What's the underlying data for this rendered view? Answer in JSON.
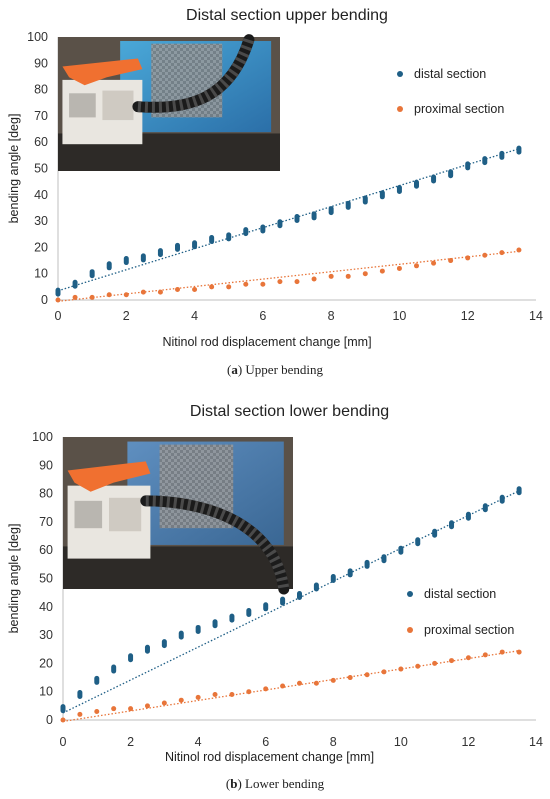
{
  "colors": {
    "distal": "#1f5f86",
    "proximal": "#e8753a",
    "axis": "#bfbfbf",
    "text": "#333333"
  },
  "charts": [
    {
      "caption_letter": "a",
      "caption_rest": " Upper bending",
      "photo": "upper-bending-photo",
      "chart_data": {
        "type": "scatter",
        "title": "Distal section upper bending",
        "xlabel": "Nitinol rod displacement change [mm]",
        "ylabel": "bending angle [deg]",
        "xlim": [
          0,
          14
        ],
        "ylim": [
          0,
          100
        ],
        "xticks": [
          "0",
          "2",
          "4",
          "6",
          "8",
          "10",
          "12",
          "14"
        ],
        "yticks": [
          "0",
          "10",
          "20",
          "30",
          "40",
          "50",
          "60",
          "70",
          "80",
          "90",
          "100"
        ],
        "grid": false,
        "legend": "right",
        "x": [
          0,
          0.5,
          1,
          1.5,
          2,
          2.5,
          3,
          3.5,
          4,
          4.5,
          5,
          5.5,
          6,
          6.5,
          7,
          7.5,
          8,
          8.5,
          9,
          9.5,
          10,
          10.5,
          11,
          11.5,
          12,
          12.5,
          13,
          13.5
        ],
        "series": [
          {
            "name": "distal section",
            "values": [
              3,
              6,
              10,
              13,
              15,
              16,
              18,
              20,
              21,
              23,
              24,
              26,
              27,
              29,
              31,
              32,
              34,
              36,
              38,
              40,
              42,
              44,
              46,
              48,
              51,
              53,
              55,
              57
            ],
            "trend": [
              3.5,
              57.5
            ]
          },
          {
            "name": "proximal section",
            "values": [
              0,
              1,
              1,
              2,
              2,
              3,
              3,
              4,
              4,
              5,
              5,
              6,
              6,
              7,
              7,
              8,
              9,
              9,
              10,
              11,
              12,
              13,
              14,
              15,
              16,
              17,
              18,
              19
            ],
            "trend": [
              -0.5,
              18.5
            ]
          }
        ]
      }
    },
    {
      "caption_letter": "b",
      "caption_rest": " Lower bending",
      "photo": "lower-bending-photo",
      "chart_data": {
        "type": "scatter",
        "title": "Distal section lower bending",
        "xlabel": "Nitinol rod displacement change [mm]",
        "ylabel": "bending angle [deg]",
        "xlim": [
          0,
          14
        ],
        "ylim": [
          0,
          100
        ],
        "xticks": [
          "0",
          "2",
          "4",
          "6",
          "8",
          "10",
          "12",
          "14"
        ],
        "yticks": [
          "0",
          "10",
          "20",
          "30",
          "40",
          "50",
          "60",
          "70",
          "80",
          "90",
          "100"
        ],
        "grid": false,
        "legend": "right",
        "x": [
          0,
          0.5,
          1,
          1.5,
          2,
          2.5,
          3,
          3.5,
          4,
          4.5,
          5,
          5.5,
          6,
          6.5,
          7,
          7.5,
          8,
          8.5,
          9,
          9.5,
          10,
          10.5,
          11,
          11.5,
          12,
          12.5,
          13,
          13.5
        ],
        "series": [
          {
            "name": "distal section",
            "values": [
              4,
              9,
              14,
              18,
              22,
              25,
              27,
              30,
              32,
              34,
              36,
              38,
              40,
              42,
              44,
              47,
              50,
              52,
              55,
              57,
              60,
              63,
              66,
              69,
              72,
              75,
              78,
              81
            ],
            "trend": [
              2.5,
              81
            ]
          },
          {
            "name": "proximal section",
            "values": [
              0,
              2,
              3,
              4,
              4,
              5,
              6,
              7,
              8,
              9,
              9,
              10,
              11,
              12,
              13,
              13,
              14,
              15,
              16,
              17,
              18,
              19,
              20,
              21,
              22,
              23,
              24,
              24
            ],
            "trend": [
              -0.5,
              24.5
            ]
          }
        ]
      }
    }
  ]
}
